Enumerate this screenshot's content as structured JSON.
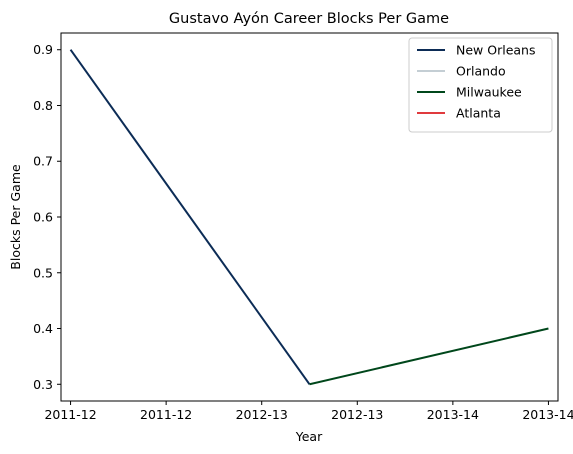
{
  "chart_data": {
    "type": "line",
    "title": "Gustavo Ayón Career Blocks Per Game",
    "xlabel": "Year",
    "ylabel": "Blocks Per Game",
    "x_tick_labels": [
      "2011-12",
      "2011-12",
      "2012-13",
      "2012-13",
      "2013-14",
      "2013-14"
    ],
    "y_ticks": [
      0.3,
      0.4,
      0.5,
      0.6,
      0.7,
      0.8,
      0.9
    ],
    "xlim": [
      -0.1,
      5.1
    ],
    "ylim": [
      0.27,
      0.93
    ],
    "grid": false,
    "legend_position": "top-right",
    "series": [
      {
        "name": "New Orleans",
        "color": "#0C2C56",
        "x": [
          0,
          2.5
        ],
        "y": [
          0.9,
          0.3
        ]
      },
      {
        "name": "Orlando",
        "color": "#C4CED4",
        "x": [],
        "y": []
      },
      {
        "name": "Milwaukee",
        "color": "#00471B",
        "x": [
          2.5,
          5
        ],
        "y": [
          0.3,
          0.4
        ]
      },
      {
        "name": "Atlanta",
        "color": "#E03A3E",
        "x": [],
        "y": []
      }
    ]
  }
}
